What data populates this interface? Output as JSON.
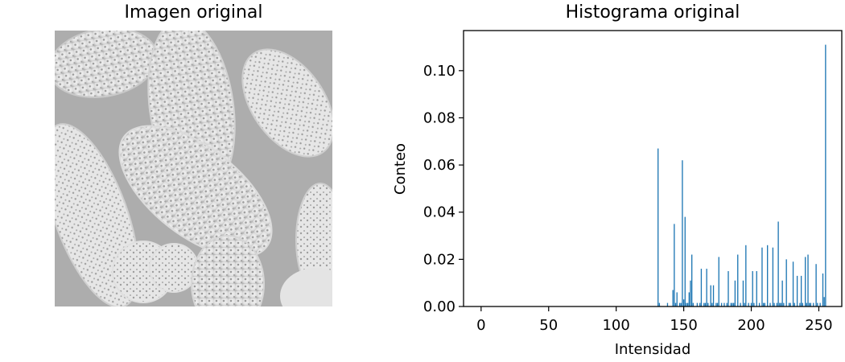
{
  "image_panel": {
    "title": "Imagen original"
  },
  "colors": {
    "bar": "#1f77b4",
    "axis": "#000000",
    "image_background": "#a9a9a9",
    "image_grain": "#f2f2f2"
  },
  "chart_data": {
    "type": "bar",
    "title": "Histograma original",
    "xlabel": "Intensidad",
    "ylabel": "Conteo",
    "xlim": [
      -13,
      267
    ],
    "ylim": [
      0,
      0.117
    ],
    "xticks": [
      0,
      50,
      100,
      150,
      200,
      250
    ],
    "yticks": [
      0.0,
      0.02,
      0.04,
      0.06,
      0.08,
      0.1
    ],
    "ytick_labels": [
      "0.00",
      "0.02",
      "0.04",
      "0.06",
      "0.08",
      "0.10"
    ],
    "grid": false,
    "x": [
      131,
      132,
      138,
      142,
      143,
      144,
      145,
      147,
      148,
      149,
      150,
      151,
      152,
      153,
      154,
      155,
      156,
      157,
      160,
      162,
      163,
      165,
      166,
      167,
      168,
      170,
      171,
      172,
      174,
      175,
      176,
      178,
      180,
      182,
      183,
      185,
      186,
      187,
      188,
      190,
      192,
      194,
      195,
      196,
      198,
      200,
      201,
      202,
      204,
      206,
      208,
      209,
      210,
      212,
      214,
      216,
      217,
      219,
      220,
      221,
      222,
      223,
      224,
      226,
      228,
      229,
      231,
      232,
      234,
      236,
      237,
      238,
      240,
      241,
      242,
      243,
      244,
      246,
      248,
      249,
      251,
      253,
      254,
      255
    ],
    "values": [
      0.067,
      0.0015,
      0.0015,
      0.007,
      0.035,
      0.0015,
      0.006,
      0.0015,
      0.0015,
      0.062,
      0.003,
      0.038,
      0.0015,
      0.0015,
      0.006,
      0.011,
      0.022,
      0.0015,
      0.0015,
      0.0015,
      0.016,
      0.0015,
      0.0015,
      0.016,
      0.0015,
      0.009,
      0.0015,
      0.009,
      0.0015,
      0.0015,
      0.021,
      0.0015,
      0.0015,
      0.0015,
      0.015,
      0.0015,
      0.0015,
      0.0015,
      0.011,
      0.022,
      0.0015,
      0.011,
      0.0015,
      0.026,
      0.0015,
      0.0015,
      0.015,
      0.0015,
      0.015,
      0.0015,
      0.025,
      0.0015,
      0.0015,
      0.026,
      0.0015,
      0.025,
      0.0015,
      0.0015,
      0.036,
      0.0015,
      0.0015,
      0.011,
      0.0015,
      0.02,
      0.0015,
      0.0015,
      0.019,
      0.0015,
      0.013,
      0.0015,
      0.013,
      0.0015,
      0.021,
      0.0015,
      0.022,
      0.0015,
      0.0015,
      0.0015,
      0.018,
      0.0015,
      0.0015,
      0.014,
      0.004,
      0.111
    ]
  }
}
